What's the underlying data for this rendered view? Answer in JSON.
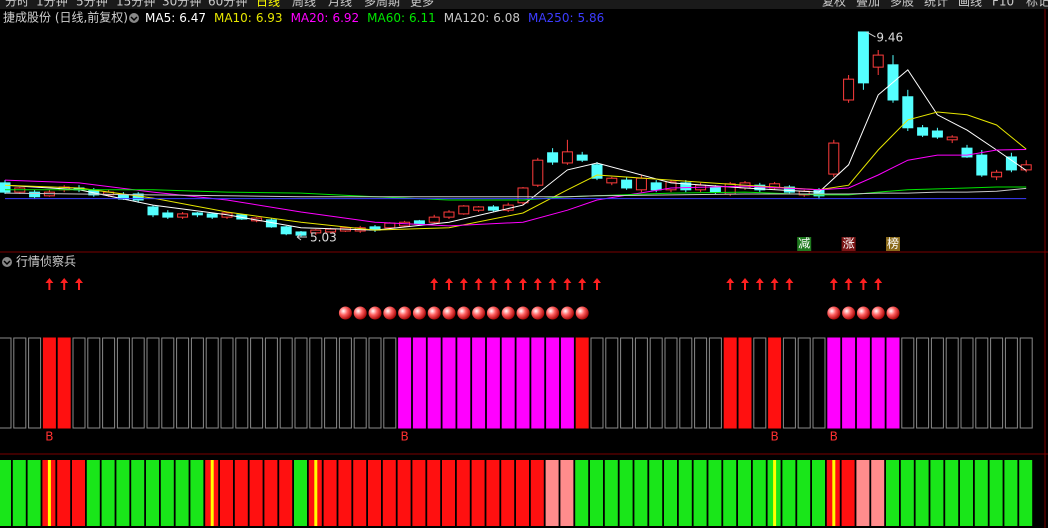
{
  "toolbar": {
    "left": [
      "分时",
      "1分钟",
      "5分钟",
      "15分钟",
      "30分钟",
      "60分钟",
      "日线",
      "周线",
      "月线",
      "多周期",
      "更多"
    ],
    "right": [
      "复权",
      "叠加",
      "多股",
      "统计",
      "画线",
      "F10",
      "标记"
    ]
  },
  "chart_data": {
    "type": "candlestick",
    "title": "捷成股份 (日线,前复权)",
    "panel_title": "行情侦察兵",
    "ylim": [
      4.75,
      10.15
    ],
    "up_color": "#ff3c3c",
    "down_color": "#54ffff",
    "candles": [
      {
        "open": 6.2,
        "high": 6.26,
        "low": 5.96,
        "close": 6.0
      },
      {
        "open": 6.0,
        "high": 6.11,
        "low": 5.96,
        "close": 6.09
      },
      {
        "open": 6.0,
        "high": 6.05,
        "low": 5.85,
        "close": 5.9
      },
      {
        "open": 5.92,
        "high": 6.05,
        "low": 5.9,
        "close": 6.0
      },
      {
        "open": 6.05,
        "high": 6.15,
        "low": 6.0,
        "close": 6.11
      },
      {
        "open": 6.09,
        "high": 6.15,
        "low": 6.0,
        "close": 6.05
      },
      {
        "open": 6.05,
        "high": 6.09,
        "low": 5.9,
        "close": 5.94
      },
      {
        "open": 5.94,
        "high": 6.05,
        "low": 5.9,
        "close": 6.0
      },
      {
        "open": 5.94,
        "high": 6.0,
        "low": 5.83,
        "close": 5.85
      },
      {
        "open": 5.96,
        "high": 6.0,
        "low": 5.77,
        "close": 5.83
      },
      {
        "open": 5.68,
        "high": 5.72,
        "low": 5.46,
        "close": 5.51
      },
      {
        "open": 5.55,
        "high": 5.61,
        "low": 5.42,
        "close": 5.46
      },
      {
        "open": 5.46,
        "high": 5.57,
        "low": 5.42,
        "close": 5.53
      },
      {
        "open": 5.55,
        "high": 5.57,
        "low": 5.46,
        "close": 5.51
      },
      {
        "open": 5.53,
        "high": 5.55,
        "low": 5.42,
        "close": 5.46
      },
      {
        "open": 5.46,
        "high": 5.57,
        "low": 5.42,
        "close": 5.55
      },
      {
        "open": 5.51,
        "high": 5.53,
        "low": 5.4,
        "close": 5.42
      },
      {
        "open": 5.38,
        "high": 5.46,
        "low": 5.35,
        "close": 5.44
      },
      {
        "open": 5.4,
        "high": 5.44,
        "low": 5.23,
        "close": 5.25
      },
      {
        "open": 5.25,
        "high": 5.27,
        "low": 5.07,
        "close": 5.1
      },
      {
        "open": 5.14,
        "high": 5.16,
        "low": 5.03,
        "close": 5.07
      },
      {
        "open": 5.12,
        "high": 5.2,
        "low": 5.07,
        "close": 5.18
      },
      {
        "open": 5.14,
        "high": 5.23,
        "low": 5.12,
        "close": 5.2
      },
      {
        "open": 5.16,
        "high": 5.25,
        "low": 5.14,
        "close": 5.23
      },
      {
        "open": 5.16,
        "high": 5.27,
        "low": 5.12,
        "close": 5.23
      },
      {
        "open": 5.25,
        "high": 5.29,
        "low": 5.14,
        "close": 5.18
      },
      {
        "open": 5.23,
        "high": 5.35,
        "low": 5.2,
        "close": 5.33
      },
      {
        "open": 5.27,
        "high": 5.38,
        "low": 5.25,
        "close": 5.35
      },
      {
        "open": 5.38,
        "high": 5.4,
        "low": 5.29,
        "close": 5.31
      },
      {
        "open": 5.35,
        "high": 5.51,
        "low": 5.33,
        "close": 5.46
      },
      {
        "open": 5.46,
        "high": 5.61,
        "low": 5.42,
        "close": 5.57
      },
      {
        "open": 5.53,
        "high": 5.72,
        "low": 5.51,
        "close": 5.7
      },
      {
        "open": 5.61,
        "high": 5.7,
        "low": 5.57,
        "close": 5.68
      },
      {
        "open": 5.68,
        "high": 5.72,
        "low": 5.57,
        "close": 5.61
      },
      {
        "open": 5.61,
        "high": 5.77,
        "low": 5.57,
        "close": 5.72
      },
      {
        "open": 5.77,
        "high": 6.11,
        "low": 5.72,
        "close": 6.09
      },
      {
        "open": 6.15,
        "high": 6.74,
        "low": 6.11,
        "close": 6.69
      },
      {
        "open": 6.85,
        "high": 6.95,
        "low": 6.59,
        "close": 6.65
      },
      {
        "open": 6.63,
        "high": 7.13,
        "low": 6.59,
        "close": 6.87
      },
      {
        "open": 6.8,
        "high": 6.87,
        "low": 6.65,
        "close": 6.69
      },
      {
        "open": 6.59,
        "high": 6.65,
        "low": 6.26,
        "close": 6.3
      },
      {
        "open": 6.2,
        "high": 6.33,
        "low": 6.15,
        "close": 6.3
      },
      {
        "open": 6.26,
        "high": 6.33,
        "low": 6.05,
        "close": 6.09
      },
      {
        "open": 6.05,
        "high": 6.37,
        "low": 6.0,
        "close": 6.3
      },
      {
        "open": 6.2,
        "high": 6.26,
        "low": 6.0,
        "close": 6.05
      },
      {
        "open": 6.05,
        "high": 6.26,
        "low": 6.0,
        "close": 6.22
      },
      {
        "open": 6.2,
        "high": 6.26,
        "low": 6.0,
        "close": 6.05
      },
      {
        "open": 6.05,
        "high": 6.2,
        "low": 6.0,
        "close": 6.15
      },
      {
        "open": 6.11,
        "high": 6.15,
        "low": 5.96,
        "close": 6.0
      },
      {
        "open": 5.96,
        "high": 6.22,
        "low": 5.92,
        "close": 6.18
      },
      {
        "open": 6.09,
        "high": 6.24,
        "low": 6.05,
        "close": 6.2
      },
      {
        "open": 6.15,
        "high": 6.2,
        "low": 6.0,
        "close": 6.05
      },
      {
        "open": 6.09,
        "high": 6.22,
        "low": 6.05,
        "close": 6.18
      },
      {
        "open": 6.11,
        "high": 6.15,
        "low": 5.96,
        "close": 6.0
      },
      {
        "open": 5.94,
        "high": 6.05,
        "low": 5.9,
        "close": 6.02
      },
      {
        "open": 6.05,
        "high": 6.09,
        "low": 5.85,
        "close": 5.92
      },
      {
        "open": 6.39,
        "high": 7.13,
        "low": 6.33,
        "close": 7.06
      },
      {
        "open": 7.99,
        "high": 8.53,
        "low": 7.93,
        "close": 8.44
      },
      {
        "open": 9.46,
        "high": 9.46,
        "low": 8.21,
        "close": 8.36
      },
      {
        "open": 8.7,
        "high": 9.07,
        "low": 8.53,
        "close": 8.96
      },
      {
        "open": 8.75,
        "high": 8.96,
        "low": 7.93,
        "close": 7.99
      },
      {
        "open": 8.06,
        "high": 8.21,
        "low": 7.32,
        "close": 7.39
      },
      {
        "open": 7.39,
        "high": 7.45,
        "low": 7.19,
        "close": 7.23
      },
      {
        "open": 7.32,
        "high": 7.39,
        "low": 7.15,
        "close": 7.19
      },
      {
        "open": 7.13,
        "high": 7.23,
        "low": 7.06,
        "close": 7.19
      },
      {
        "open": 6.95,
        "high": 7.02,
        "low": 6.74,
        "close": 6.76
      },
      {
        "open": 6.8,
        "high": 6.91,
        "low": 6.33,
        "close": 6.37
      },
      {
        "open": 6.33,
        "high": 6.48,
        "low": 6.26,
        "close": 6.43
      },
      {
        "open": 6.76,
        "high": 6.85,
        "low": 6.43,
        "close": 6.48
      },
      {
        "open": 6.48,
        "high": 6.69,
        "low": 6.43,
        "close": 6.59
      }
    ],
    "ma_x": [
      0,
      5,
      10,
      15,
      20,
      25,
      30,
      35,
      38,
      40,
      45,
      50,
      55,
      57,
      59,
      61,
      63,
      65,
      67,
      69
    ],
    "series": [
      {
        "name": "MA5:",
        "color": "#ffffff",
        "values": [
          6.15,
          6.05,
          5.72,
          5.51,
          5.23,
          5.18,
          5.35,
          5.72,
          6.48,
          6.63,
          6.2,
          6.09,
          6.0,
          6.59,
          8.1,
          8.64,
          7.67,
          7.34,
          6.91,
          6.47
        ]
      },
      {
        "name": "MA10:",
        "color": "#e6e600",
        "values": [
          6.15,
          6.09,
          5.87,
          5.57,
          5.35,
          5.18,
          5.23,
          5.55,
          6.05,
          6.37,
          6.26,
          6.15,
          6.05,
          6.15,
          6.91,
          7.56,
          7.73,
          7.67,
          7.45,
          6.93
        ]
      },
      {
        "name": "MA20:",
        "color": "#ff00ff",
        "values": [
          6.26,
          6.2,
          6.0,
          5.83,
          5.57,
          5.35,
          5.27,
          5.35,
          5.61,
          5.83,
          6.09,
          6.13,
          6.05,
          6.09,
          6.37,
          6.69,
          6.8,
          6.8,
          6.91,
          6.92
        ]
      },
      {
        "name": "MA60:",
        "color": "#00e600",
        "values": [
          6.05,
          6.05,
          6.05,
          6.0,
          5.98,
          5.9,
          5.83,
          5.83,
          5.9,
          5.92,
          5.98,
          6.0,
          5.94,
          5.94,
          6.0,
          6.05,
          6.07,
          6.09,
          6.11,
          6.11
        ]
      },
      {
        "name": "MA120:",
        "color": "#c8c8c8",
        "values": [
          5.98,
          5.96,
          5.94,
          5.92,
          5.9,
          5.9,
          5.9,
          5.9,
          5.9,
          5.92,
          5.94,
          5.96,
          5.96,
          5.96,
          5.98,
          5.98,
          6.0,
          6.0,
          6.02,
          6.08
        ]
      },
      {
        "name": "MA250:",
        "color": "#3c3cff",
        "values": [
          5.86,
          5.86,
          5.86,
          5.86,
          5.86,
          5.86,
          5.86,
          5.86,
          5.86,
          5.86,
          5.86,
          5.86,
          5.86,
          5.86,
          5.86,
          5.86,
          5.86,
          5.86,
          5.86,
          5.86
        ]
      }
    ],
    "markers": [
      {
        "text": "减",
        "index": 54,
        "color": "#1f7a1f"
      },
      {
        "text": "涨",
        "index": 57,
        "color": "#7a1414"
      },
      {
        "text": "榜",
        "index": 60,
        "color": "#8a6a1a"
      }
    ],
    "arrows": [
      3,
      4,
      5,
      29,
      30,
      31,
      32,
      33,
      34,
      35,
      36,
      37,
      38,
      39,
      40,
      49,
      50,
      51,
      52,
      53,
      56,
      57,
      58,
      59
    ],
    "balls": [
      23,
      24,
      25,
      26,
      27,
      28,
      29,
      30,
      31,
      32,
      33,
      34,
      35,
      36,
      37,
      38,
      39,
      56,
      57,
      58,
      59,
      60
    ],
    "signal_colors": [
      null,
      null,
      null,
      "#ff1010",
      "#ff1010",
      null,
      null,
      null,
      null,
      null,
      null,
      null,
      null,
      null,
      null,
      null,
      null,
      null,
      null,
      null,
      null,
      null,
      null,
      null,
      null,
      null,
      null,
      "#ff00ff",
      "#ff00ff",
      "#ff00ff",
      "#ff00ff",
      "#ff00ff",
      "#ff00ff",
      "#ff00ff",
      "#ff00ff",
      "#ff00ff",
      "#ff00ff",
      "#ff00ff",
      "#ff00ff",
      "#ff1010",
      null,
      null,
      null,
      null,
      null,
      null,
      null,
      null,
      null,
      "#ff1010",
      "#ff1010",
      null,
      "#ff1010",
      null,
      null,
      null,
      "#ff00ff",
      "#ff00ff",
      "#ff00ff",
      "#ff00ff",
      "#ff00ff",
      null,
      null,
      null,
      null,
      null,
      null,
      null,
      null,
      null
    ],
    "b_labels": [
      {
        "text": "B",
        "index": 3
      },
      {
        "text": "B",
        "index": 27
      },
      {
        "text": "B",
        "index": 52
      },
      {
        "text": "B",
        "index": 56
      }
    ],
    "strip_colors": [
      "#19e619",
      "#19e619",
      "#19e619",
      "#ff1010",
      "#ff1010",
      "#ff1010",
      "#19e619",
      "#19e619",
      "#19e619",
      "#19e619",
      "#19e619",
      "#19e619",
      "#19e619",
      "#19e619",
      "#ff1010",
      "#ff1010",
      "#ff1010",
      "#ff1010",
      "#ff1010",
      "#ff1010",
      "#19e619",
      "#ff1010",
      "#ff1010",
      "#ff1010",
      "#ff1010",
      "#ff1010",
      "#ff1010",
      "#ff1010",
      "#ff1010",
      "#ff1010",
      "#ff1010",
      "#ff1010",
      "#ff1010",
      "#ff1010",
      "#ff1010",
      "#ff1010",
      "#ff1010",
      "#ff8c8c",
      "#ff8c8c",
      "#19e619",
      "#19e619",
      "#19e619",
      "#19e619",
      "#19e619",
      "#19e619",
      "#19e619",
      "#19e619",
      "#19e619",
      "#19e619",
      "#19e619",
      "#19e619",
      "#19e619",
      "#19e619",
      "#19e619",
      "#19e619",
      "#19e619",
      "#ff1010",
      "#ff1010",
      "#ff8c8c",
      "#ff8c8c",
      "#19e619",
      "#19e619",
      "#19e619",
      "#19e619",
      "#19e619",
      "#19e619",
      "#19e619",
      "#19e619",
      "#19e619",
      "#19e619"
    ],
    "stripes": [
      3,
      14,
      21,
      52,
      56
    ],
    "stripe_color": "#ffff00"
  }
}
